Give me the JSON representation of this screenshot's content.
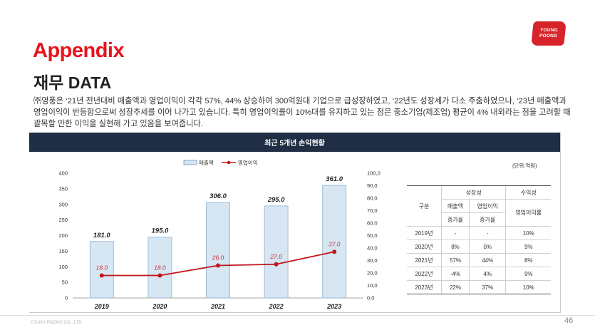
{
  "logo": {
    "line1": "YOUNG",
    "line2": "POONG"
  },
  "heading": "Appendix",
  "subtitle": "재무 DATA",
  "description": "㈜영풍은 ‘21년 전년대비 매출액과 영업이익이 각각 57%, 44% 상승하여 300억원대 기업으로 급성장하였고, ‘22년도 성장세가 다소 주춤하였으나, ‘23년 매출액과 영업이익이 반등함으로써 성장추세를 이어 나가고 있습니다. 특히 영업이익률이 10%대를 유지하고 있는 점은 중소기업(제조업) 평균이 4% 내외라는 점을 고려할 때 괄목할 만한 이익을 실현해 가고 있음을 보여줍니다.",
  "panel_title": "최근 5개년 손익현황",
  "unit_label": "(단위:억원)",
  "chart_data": {
    "type": "bar",
    "categories": [
      "2019",
      "2020",
      "2021",
      "2022",
      "2023"
    ],
    "series": [
      {
        "name": "매출액",
        "type": "bar",
        "axis": "left",
        "values": [
          181.0,
          195.0,
          306.0,
          295.0,
          361.0
        ],
        "labels": [
          "181.0",
          "195.0",
          "306.0",
          "295.0",
          "361.0"
        ],
        "color": "#d6e6f2"
      },
      {
        "name": "영업이익",
        "type": "line",
        "axis": "right",
        "values": [
          18.0,
          18.0,
          26.0,
          27.0,
          37.0
        ],
        "labels": [
          "18.0",
          "18.0",
          "26.0",
          "27.0",
          "37.0"
        ],
        "color": "#c0141c"
      }
    ],
    "y_left": {
      "min": 0,
      "max": 400,
      "ticks": [
        "0",
        "50",
        "100",
        "150",
        "200",
        "250",
        "300",
        "350",
        "400"
      ]
    },
    "y_right": {
      "min": 0,
      "max": 100,
      "ticks": [
        "0,0",
        "10,0",
        "20,0",
        "30,0",
        "40,0",
        "50,0",
        "60,0",
        "70,0",
        "80,0",
        "90,0",
        "100,0"
      ]
    },
    "legend_position": "top",
    "grid": false
  },
  "table": {
    "header_row1": {
      "col0": "구분",
      "growth": "성장성",
      "profit": "수익성"
    },
    "header_row2": {
      "sales": "매출액",
      "op": "영업이익",
      "margin": "영업이익률"
    },
    "header_row3": {
      "sales": "증가율",
      "op": "증가율"
    },
    "rows": [
      {
        "year": "2019년",
        "sales": "-",
        "op": "-",
        "margin": "10%"
      },
      {
        "year": "2020년",
        "sales": "8%",
        "op": "0%",
        "margin": "9%"
      },
      {
        "year": "2021년",
        "sales": "57%",
        "op": "44%",
        "margin": "8%"
      },
      {
        "year": "2022년",
        "sales": "-4%",
        "op": "4%",
        "margin": "9%"
      },
      {
        "year": "2023년",
        "sales": "22%",
        "op": "37%",
        "margin": "10%"
      }
    ]
  },
  "footer": "YOUNG POONG CO., LTD.",
  "page_number": "46"
}
